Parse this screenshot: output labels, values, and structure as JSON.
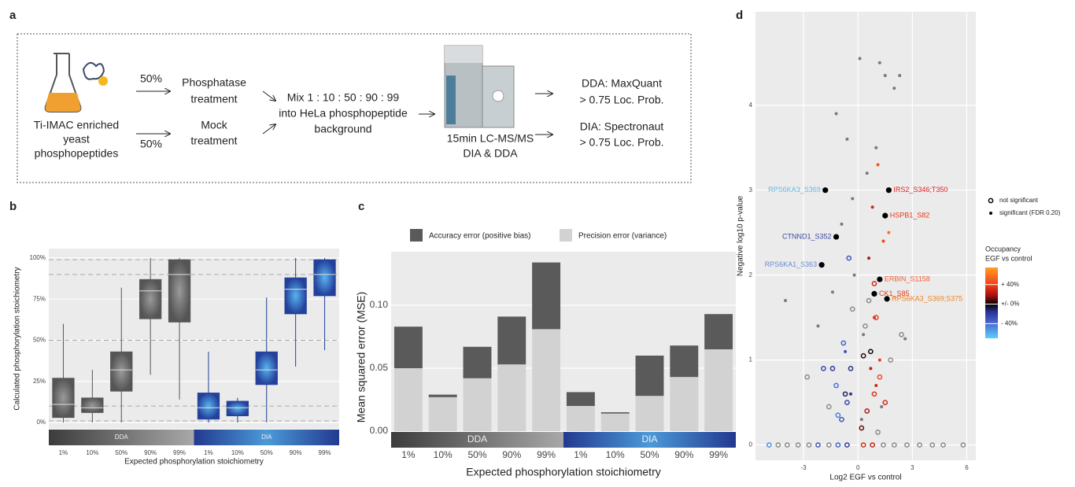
{
  "panel_labels": [
    "a",
    "b",
    "c",
    "d"
  ],
  "workflow": {
    "source": [
      "Ti-IMAC enriched",
      "yeast",
      "phosphopeptides"
    ],
    "split": [
      "50%",
      "50%"
    ],
    "treatments": [
      [
        "Phosphatase",
        "treatment"
      ],
      [
        "Mock",
        "treatment"
      ]
    ],
    "mix": [
      "Mix 1 : 10 : 50 : 90 : 99",
      "into HeLa phosphopeptide",
      "background"
    ],
    "instrument": [
      "15min LC-MS/MS",
      "DIA & DDA"
    ],
    "outputs": [
      [
        "DDA: MaxQuant",
        "> 0.75 Loc. Prob."
      ],
      [
        "DIA: Spectronaut",
        "> 0.75 Loc. Prob."
      ]
    ]
  },
  "chart_data": [
    {
      "type": "box",
      "x_label": "Expected phosphorylation stoichiometry",
      "y_label": "Calculated phosphorylation stoichiometry",
      "categories": [
        "1%",
        "10%",
        "50%",
        "90%",
        "99%",
        "1%",
        "10%",
        "50%",
        "90%",
        "99%"
      ],
      "groups": [
        {
          "label": "DDA"
        },
        {
          "label": "DIA"
        }
      ],
      "whisker_low": [
        0,
        0,
        0,
        29,
        14,
        0,
        0,
        0,
        34,
        44
      ],
      "q1": [
        3,
        6,
        19,
        63,
        61,
        2,
        4,
        23,
        66,
        77
      ],
      "median": [
        11,
        9,
        32,
        80,
        90,
        9,
        9,
        32,
        81,
        90
      ],
      "q3": [
        27,
        15,
        43,
        87,
        99,
        18,
        13,
        43,
        88,
        99
      ],
      "whisker_high": [
        60,
        32,
        82,
        100,
        100,
        43,
        15,
        76,
        100,
        100
      ],
      "reference_lines": [
        1,
        10,
        50,
        90,
        99
      ],
      "ylim": [
        -3.8,
        105.7
      ],
      "yticks": [
        {
          "value": 0,
          "label": "0%"
        },
        {
          "value": 25,
          "label": "25%"
        },
        {
          "value": 50,
          "label": "50%"
        },
        {
          "value": 75,
          "label": "75%"
        },
        {
          "value": 100,
          "label": "100%"
        }
      ],
      "grid": true
    },
    {
      "type": "stacked-bar",
      "x_label": "Expected phosphorylation stoichiometry",
      "y_label": "Mean squared error (MSE)",
      "categories": [
        "1%",
        "10%",
        "50%",
        "90%",
        "99%",
        "1%",
        "10%",
        "50%",
        "90%",
        "99%"
      ],
      "groups": [
        {
          "label": "DDA"
        },
        {
          "label": "DIA"
        }
      ],
      "series": [
        {
          "name": "Accuracy error (positive bias)",
          "color": "#5a5a5a",
          "values": [
            0.033,
            0.002,
            0.025,
            0.038,
            0.053,
            0.011,
            0.001,
            0.032,
            0.025,
            0.028
          ]
        },
        {
          "name": "Precision error (variance)",
          "color": "#d2d2d2",
          "values": [
            0.05,
            0.027,
            0.042,
            0.053,
            0.081,
            0.02,
            0.014,
            0.028,
            0.043,
            0.065
          ]
        }
      ],
      "ylim": [
        0,
        0.1425
      ],
      "yticks": [
        {
          "value": 0,
          "label": "0.00"
        },
        {
          "value": 0.05,
          "label": "0.05"
        },
        {
          "value": 0.1,
          "label": "0.10"
        }
      ],
      "grid": true
    },
    {
      "type": "volcano",
      "x_label": "Log2 EGF vs control",
      "y_label": "Negative log10 p-value",
      "series": [
        {
          "name": "not significant",
          "color": "#8a8a8a",
          "x": [
            -4.9,
            -4.4,
            -3.9,
            -3.3,
            -2.7,
            -2.2,
            -1.6,
            -1.1,
            -0.6,
            0.3,
            0.8,
            1.4,
            2.0,
            2.7,
            3.4,
            4.1,
            4.7,
            5.8,
            -0.9,
            -0.6,
            -1.2,
            -0.4,
            0.5,
            0.9,
            1.2,
            0.7,
            -0.8,
            -1.4,
            0.4,
            1.5,
            -0.3,
            0.2,
            2.4,
            -2.8,
            -1.9,
            1.0,
            0.6,
            -0.7,
            1.8,
            -1.1,
            -0.5,
            0.9,
            1.1,
            -1.6,
            0.3
          ],
          "values": [
            0,
            0,
            0,
            0,
            0,
            0,
            0,
            0,
            0,
            0,
            0,
            0,
            0,
            0,
            0,
            0,
            0,
            0,
            0.3,
            0.5,
            0.7,
            0.9,
            0.4,
            0.6,
            0.8,
            1.1,
            1.2,
            0.9,
            1.4,
            0.5,
            1.6,
            0.2,
            1.3,
            0.8,
            0.9,
            1.5,
            1.7,
            0.6,
            1.0,
            0.35,
            2.2,
            1.9,
            0.15,
            0.45,
            1.05
          ],
          "occupancy": [
            -50,
            null,
            null,
            null,
            null,
            -30,
            null,
            -35,
            -20,
            30,
            25,
            null,
            null,
            null,
            null,
            null,
            null,
            null,
            -30,
            -25,
            -40,
            -15,
            20,
            35,
            45,
            0,
            -35,
            -20,
            null,
            30,
            null,
            10,
            null,
            null,
            -25,
            40,
            null,
            -10,
            null,
            -45,
            -30,
            30,
            null,
            null,
            5
          ]
        },
        {
          "name": "significant (FDR 0.20)",
          "color": "#7a7a7a",
          "x": [
            0.1,
            1.2,
            1.5,
            2.3,
            -1.2,
            2.0,
            1.0,
            -0.6,
            -4.0,
            0.5,
            -0.3,
            0.8,
            1.1,
            -0.9,
            1.4,
            0.6,
            -0.2,
            1.7,
            -1.4,
            0.9,
            0.3,
            -0.7,
            1.2,
            2.6,
            -2.2,
            0.7,
            1.0,
            -0.4,
            1.3,
            0.2
          ],
          "values": [
            4.55,
            4.5,
            4.35,
            4.35,
            3.9,
            4.2,
            3.5,
            3.6,
            1.7,
            3.2,
            2.9,
            2.8,
            3.3,
            2.6,
            2.4,
            2.2,
            2.0,
            2.5,
            1.8,
            1.5,
            1.3,
            1.1,
            1.0,
            1.25,
            1.4,
            0.9,
            0.7,
            0.6,
            0.45,
            0.3
          ],
          "occupancy": [
            null,
            null,
            null,
            null,
            null,
            null,
            null,
            null,
            null,
            null,
            null,
            30,
            50,
            null,
            45,
            20,
            null,
            60,
            null,
            35,
            null,
            -30,
            40,
            null,
            null,
            25,
            30,
            -20,
            null,
            null
          ]
        }
      ],
      "annotations": [
        {
          "x": 1.7,
          "y": 3.0,
          "text": "IRS2_S346;T350",
          "color": "#e41a1c"
        },
        {
          "x": -1.8,
          "y": 3.0,
          "text": "RPS6KA3_S369",
          "color": "#5bb8e8"
        },
        {
          "x": 1.5,
          "y": 2.7,
          "text": "HSPB1_S82",
          "color": "#e8391c"
        },
        {
          "x": -1.2,
          "y": 2.45,
          "text": "CTNND1_S352",
          "color": "#3a4ea0"
        },
        {
          "x": -2.0,
          "y": 2.12,
          "text": "RPS6KA1_S363",
          "color": "#6a8cd0"
        },
        {
          "x": 1.2,
          "y": 1.95,
          "text": "ERBIN_S1158",
          "color": "#f06030"
        },
        {
          "x": 0.9,
          "y": 1.78,
          "text": "CK1_S85",
          "color": "#e8391c"
        },
        {
          "x": 1.6,
          "y": 1.72,
          "text": "RPS6KA3_S369;S375",
          "color": "#f5801e"
        }
      ],
      "colorbar": {
        "title": [
          "Occupancy",
          "EGF vs control"
        ],
        "clim": [
          -70,
          75
        ],
        "ticks": [
          {
            "value": 40,
            "label": "+ 40%"
          },
          {
            "value": 0,
            "label": "+/- 0%"
          },
          {
            "value": -40,
            "label": "- 40%"
          }
        ]
      },
      "xlim": [
        -5.65,
        6.5
      ],
      "ylim": [
        -0.18,
        5.1
      ],
      "xticks": [
        -3,
        0,
        3,
        6
      ],
      "yticks": [
        0,
        1,
        2,
        3,
        4
      ],
      "grid": true
    }
  ]
}
